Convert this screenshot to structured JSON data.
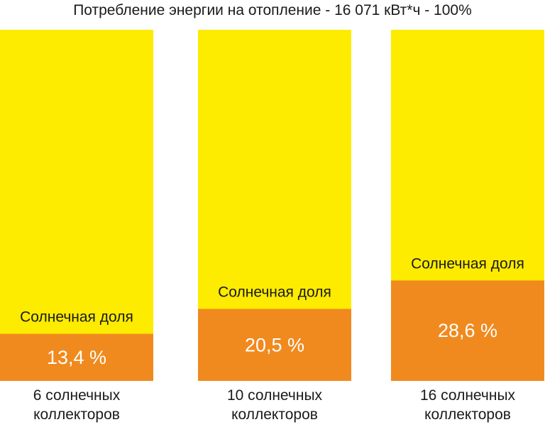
{
  "chart_data": {
    "type": "bar",
    "title": "Потребление энергии на отопление  - 16 071 кВт*ч - 100%",
    "categories": [
      "6 солнечных\nколлекторов",
      "10 солнечных\nколлекторов",
      "16 солнечных\nколлекторов"
    ],
    "total_value": 100,
    "series": [
      {
        "name": "Солнечная доля",
        "values": [
          13.4,
          20.5,
          28.6
        ],
        "value_labels": [
          "13,4 %",
          "20,5 %",
          "28,6 %"
        ],
        "color": "#f08a1e"
      }
    ],
    "remainder_color": "#fdeb00",
    "ylim": [
      0,
      100
    ]
  }
}
